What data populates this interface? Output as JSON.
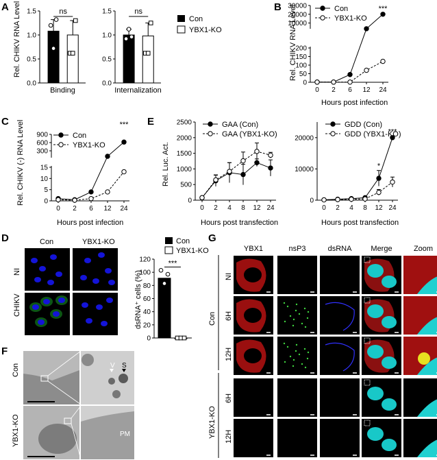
{
  "panels": {
    "A": "A",
    "B": "B",
    "C": "C",
    "D": "D",
    "E": "E",
    "F": "F",
    "G": "G"
  },
  "colors": {
    "con": "#000000",
    "ko": "#ffffff",
    "dapi": "#00ffff",
    "ybx1": "#ff2020",
    "nsp3": "#20ff20",
    "dsrna": "#2a2aff"
  },
  "chart_data": [
    {
      "id": "A1",
      "type": "bar",
      "ylabel": "Rel. CHIKV RNA Level",
      "xlabel": "Binding",
      "ylim": [
        0,
        1.5
      ],
      "yticks": [
        "0.0",
        "0.5",
        "1.0",
        "1.5"
      ],
      "series": [
        {
          "name": "Con",
          "values": [
            1.08
          ],
          "points": [
            1.2,
            0.72,
            1.32
          ]
        },
        {
          "name": "YBX1-KO",
          "values": [
            1.0
          ],
          "points": [
            0.62,
            0.62,
            1.3
          ]
        }
      ],
      "sig": "ns"
    },
    {
      "id": "A2",
      "type": "bar",
      "xlabel": "Internalization",
      "ylim": [
        0,
        1.5
      ],
      "yticks": [
        "0.0",
        "0.5",
        "1.0",
        "1.5"
      ],
      "series": [
        {
          "name": "Con",
          "values": [
            1.0
          ],
          "points": [
            0.92,
            1.12,
            0.96
          ]
        },
        {
          "name": "YBX1-KO",
          "values": [
            0.98
          ],
          "points": [
            0.62,
            0.62,
            1.25
          ]
        }
      ],
      "sig": "ns"
    },
    {
      "id": "B",
      "type": "line",
      "ylabel": "Rel. CHIKV RNA Level",
      "xlabel": "Hours post infection",
      "x": [
        "0",
        "2",
        "6",
        "12",
        "24"
      ],
      "yticks_low": [
        "0",
        "50",
        "100",
        "150",
        "200"
      ],
      "yticks_high": [
        "10000",
        "20000",
        "30000"
      ],
      "series": [
        {
          "name": "Con",
          "values": [
            1,
            1,
            45,
            3500,
            20000
          ]
        },
        {
          "name": "YBX1-KO",
          "values": [
            1,
            1,
            1,
            70,
            122
          ]
        }
      ],
      "sig": "***"
    },
    {
      "id": "C",
      "type": "line",
      "ylabel": "Rel. CHIKV (-) RNA Level",
      "xlabel": "Hours post infection",
      "x": [
        "0",
        "2",
        "6",
        "12",
        "24"
      ],
      "yticks_low": [
        "0",
        "5",
        "10",
        "15"
      ],
      "yticks_high": [
        "300",
        "600",
        "900"
      ],
      "series": [
        {
          "name": "Con",
          "values": [
            1,
            0.5,
            4,
            100,
            620
          ]
        },
        {
          "name": "YBX1-KO",
          "values": [
            0.5,
            0.3,
            1,
            4,
            13
          ]
        }
      ],
      "sig": "***"
    },
    {
      "id": "E1",
      "type": "line",
      "ylabel": "Rel. Luc. Act.",
      "xlabel": "Hours post transfection",
      "x": [
        "0",
        "2",
        "4",
        "8",
        "12",
        "24"
      ],
      "ylim": [
        0,
        2500
      ],
      "yticks": [
        "0",
        "500",
        "1000",
        "1500",
        "2000",
        "2500"
      ],
      "series": [
        {
          "name": "GAA (Con)",
          "values": [
            80,
            620,
            880,
            820,
            1200,
            1030
          ],
          "err": [
            20,
            180,
            320,
            330,
            120,
            260
          ]
        },
        {
          "name": "GAA (YBX1-KO)",
          "values": [
            80,
            650,
            920,
            1260,
            1560,
            1440
          ],
          "err": [
            20,
            160,
            280,
            280,
            270,
            90
          ]
        }
      ]
    },
    {
      "id": "E2",
      "type": "line",
      "xlabel": "Hours post transfection",
      "x": [
        "0",
        "2",
        "4",
        "8",
        "12",
        "24"
      ],
      "ylim": [
        0,
        25000
      ],
      "yticks": [
        "0",
        "10000",
        "20000"
      ],
      "series": [
        {
          "name": "GDD (Con)",
          "values": [
            100,
            300,
            500,
            800,
            7000,
            20000
          ],
          "err": [
            50,
            150,
            300,
            400,
            2500,
            500
          ]
        },
        {
          "name": "GDD (YBX1-KO)",
          "values": [
            100,
            200,
            300,
            400,
            2500,
            5800
          ],
          "err": [
            50,
            100,
            150,
            200,
            900,
            1600
          ]
        }
      ],
      "sig": [
        "*",
        "***"
      ]
    },
    {
      "id": "D",
      "type": "bar",
      "ylabel": "dsRNA⁺ cells (%)",
      "ylim": [
        0,
        120
      ],
      "yticks": [
        "0",
        "20",
        "40",
        "60",
        "80",
        "100",
        "120"
      ],
      "series": [
        {
          "name": "Con",
          "values": [
            91
          ],
          "points": [
            103,
            83,
            97
          ]
        },
        {
          "name": "YBX1-KO",
          "values": [
            0
          ],
          "points": [
            0,
            0,
            0
          ]
        }
      ],
      "sig": "***"
    }
  ],
  "legend_a": {
    "con": "Con",
    "ko": "YBX1-KO"
  },
  "legend_d": {
    "con": "Con",
    "ko": "YBX1-KO"
  },
  "d_images": {
    "col_con": "Con",
    "col_ko": "YBX1-KO",
    "row_ni": "NI",
    "row_chikv": "CHIKV"
  },
  "f_images": {
    "row_con": "Con",
    "row_ko": "YBX1-KO",
    "label_v": "V",
    "label_s": "S",
    "label_pm": "PM"
  },
  "g_images": {
    "cols": [
      "YBX1",
      "nsP3",
      "dsRNA",
      "Merge",
      "Zoom"
    ],
    "rows": [
      "NI",
      "6H",
      "12H",
      "6H",
      "12H"
    ],
    "groups": [
      "Con",
      "YBX1-KO"
    ]
  }
}
